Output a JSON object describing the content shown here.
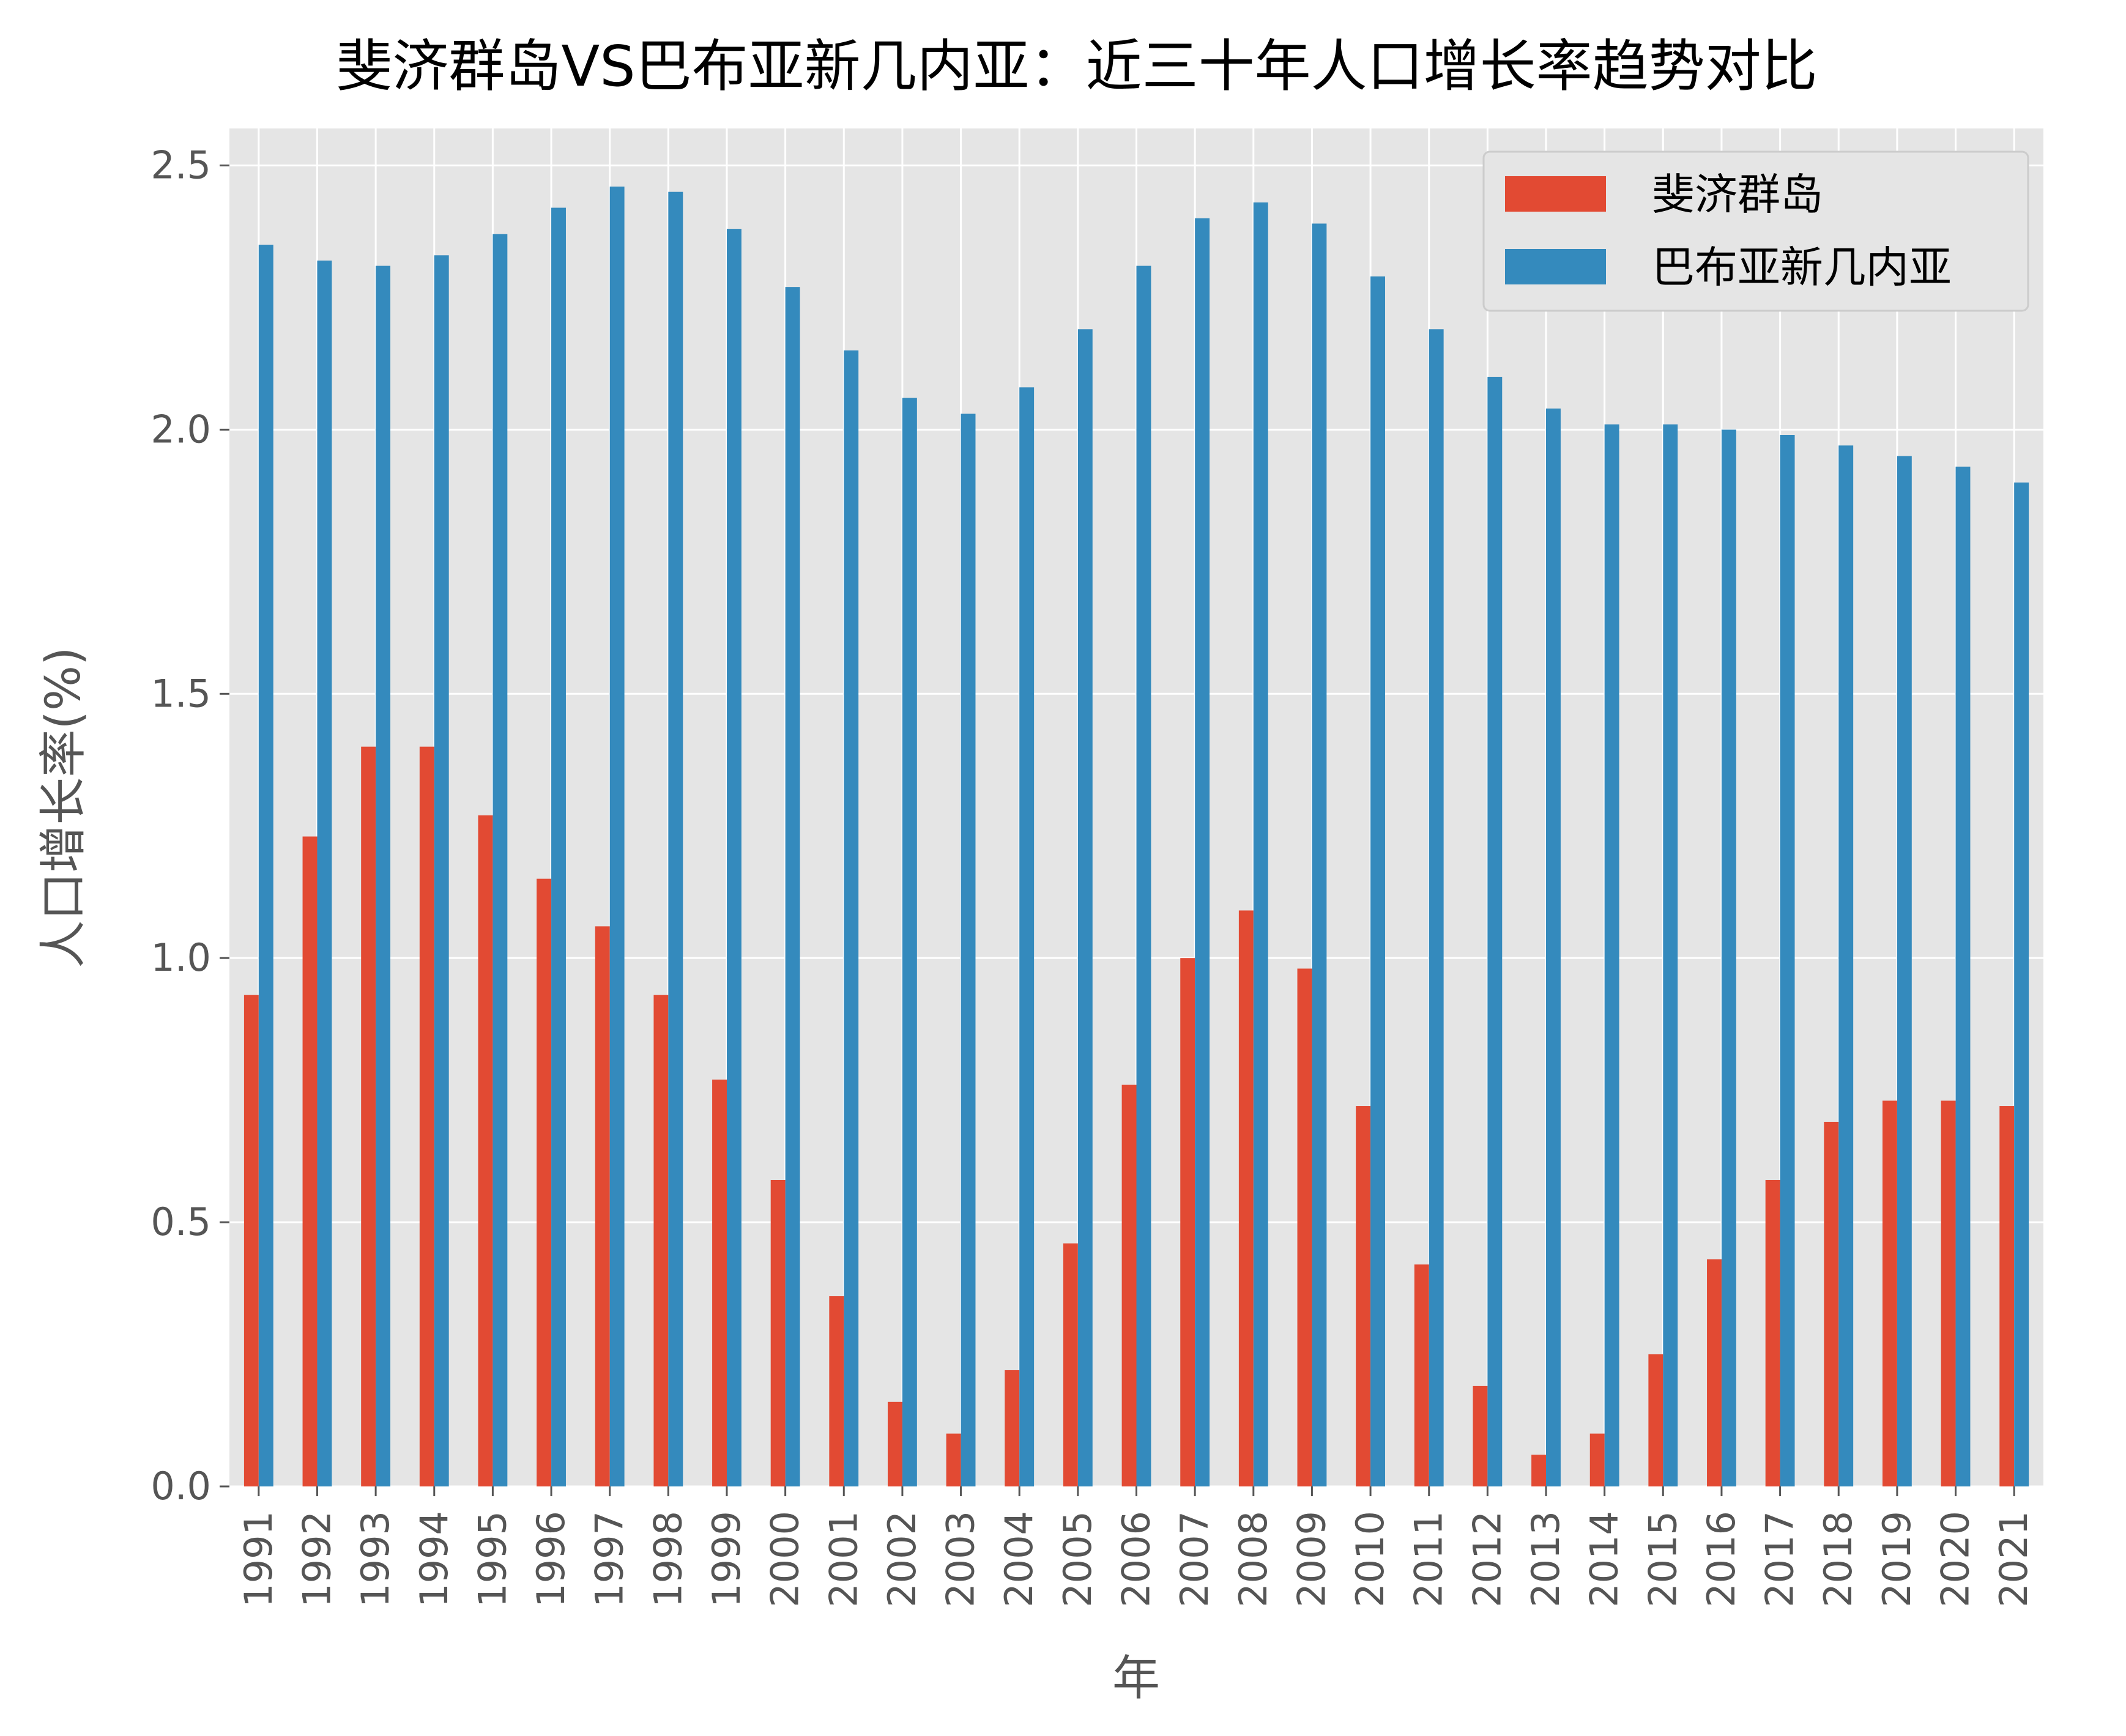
{
  "chart_data": {
    "type": "bar",
    "title": "斐济群岛VS巴布亚新几内亚：近三十年人口增长率趋势对比",
    "xlabel": "年",
    "ylabel": "人口增长率(%)",
    "ylim": [
      0,
      2.57
    ],
    "yticks": [
      "0.0",
      "0.5",
      "1.0",
      "1.5",
      "2.0",
      "2.5"
    ],
    "grid": true,
    "legend_position": "top-right",
    "categories": [
      "1991",
      "1992",
      "1993",
      "1994",
      "1995",
      "1996",
      "1997",
      "1998",
      "1999",
      "2000",
      "2001",
      "2002",
      "2003",
      "2004",
      "2005",
      "2006",
      "2007",
      "2008",
      "2009",
      "2010",
      "2011",
      "2012",
      "2013",
      "2014",
      "2015",
      "2016",
      "2017",
      "2018",
      "2019",
      "2020",
      "2021"
    ],
    "series": [
      {
        "name": "斐济群岛",
        "color": "#E24A33",
        "values": [
          0.93,
          1.23,
          1.4,
          1.4,
          1.27,
          1.15,
          1.06,
          0.93,
          0.77,
          0.58,
          0.36,
          0.16,
          0.1,
          0.22,
          0.46,
          0.76,
          1.0,
          1.09,
          0.98,
          0.72,
          0.42,
          0.19,
          0.06,
          0.1,
          0.25,
          0.43,
          0.58,
          0.69,
          0.73,
          0.73,
          0.72
        ]
      },
      {
        "name": "巴布亚新几内亚",
        "color": "#348ABD",
        "values": [
          2.35,
          2.32,
          2.31,
          2.33,
          2.37,
          2.42,
          2.46,
          2.45,
          2.38,
          2.27,
          2.15,
          2.06,
          2.03,
          2.08,
          2.19,
          2.31,
          2.4,
          2.43,
          2.39,
          2.29,
          2.19,
          2.1,
          2.04,
          2.01,
          2.01,
          2.0,
          1.99,
          1.97,
          1.95,
          1.93,
          1.9
        ]
      }
    ]
  }
}
